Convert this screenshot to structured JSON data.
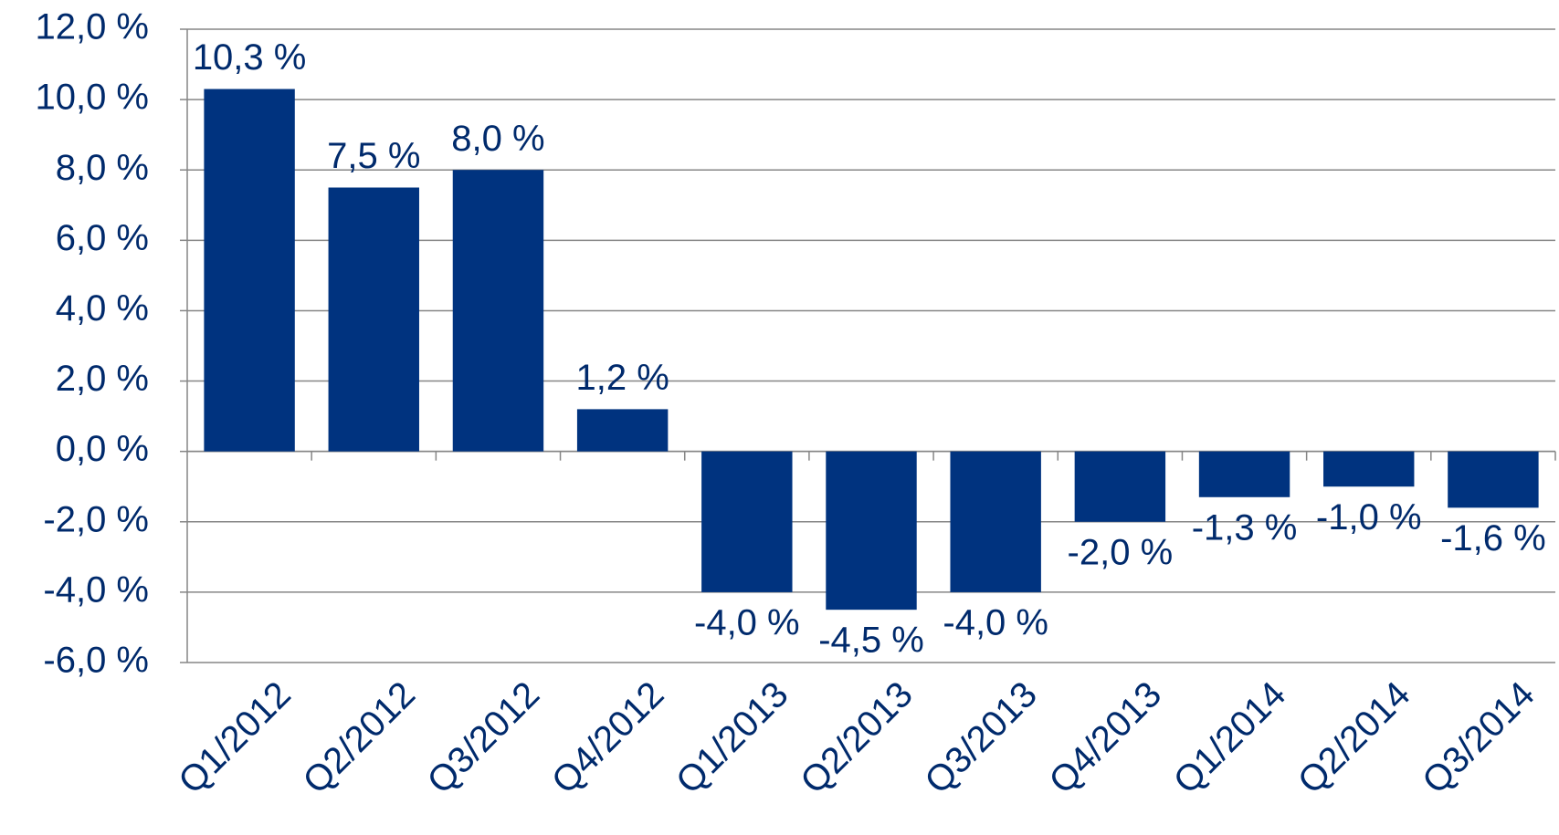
{
  "chart_data": {
    "type": "bar",
    "categories": [
      "Q1/2012",
      "Q2/2012",
      "Q3/2012",
      "Q4/2012",
      "Q1/2013",
      "Q2/2013",
      "Q3/2013",
      "Q4/2013",
      "Q1/2014",
      "Q2/2014",
      "Q3/2014"
    ],
    "values": [
      10.3,
      7.5,
      8.0,
      1.2,
      -4.0,
      -4.5,
      -4.0,
      -2.0,
      -1.3,
      -1.0,
      -1.6
    ],
    "value_labels": [
      "10,3 %",
      "7,5 %",
      "8,0 %",
      "1,2 %",
      "-4,0 %",
      "-4,5 %",
      "-4,0 %",
      "-2,0 %",
      "-1,3 %",
      "-1,0 %",
      "-1,6 %"
    ],
    "color": "#00337f",
    "ylim": [
      -6,
      12
    ],
    "yticks": [
      {
        "value": -6,
        "label": "-6,0 %"
      },
      {
        "value": -4,
        "label": "-4,0 %"
      },
      {
        "value": -2,
        "label": "-2,0 %"
      },
      {
        "value": 0,
        "label": "0,0 %"
      },
      {
        "value": 2,
        "label": "2,0 %"
      },
      {
        "value": 4,
        "label": "4,0 %"
      },
      {
        "value": 6,
        "label": "6,0 %"
      },
      {
        "value": 8,
        "label": "8,0 %"
      },
      {
        "value": 10,
        "label": "10,0 %"
      },
      {
        "value": 12,
        "label": "12,0 %"
      }
    ],
    "grid": true
  }
}
